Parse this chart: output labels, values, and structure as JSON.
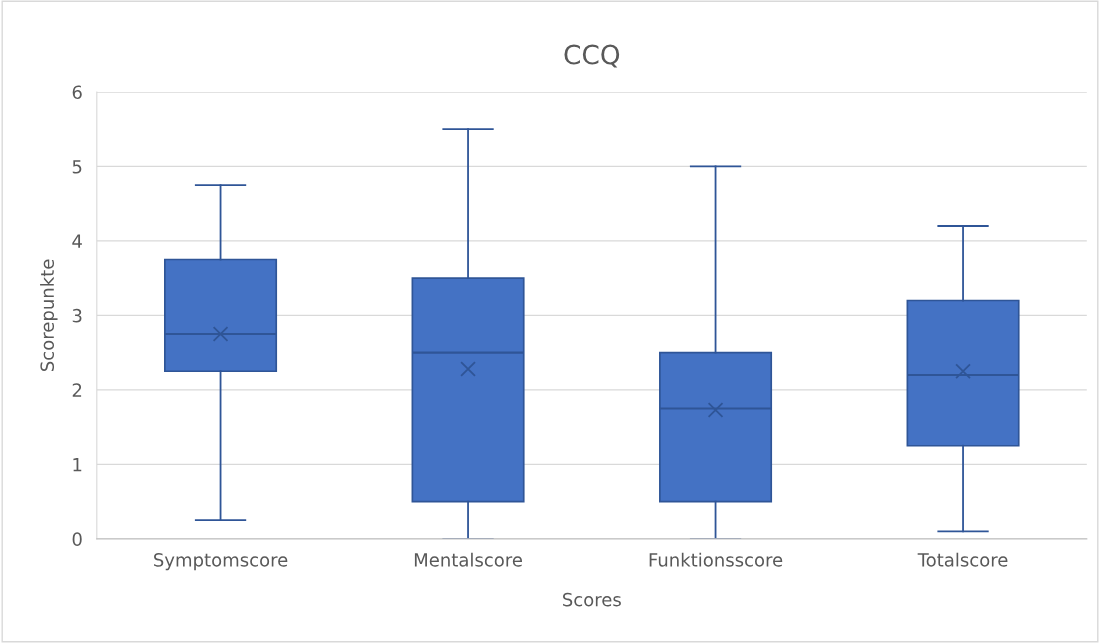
{
  "chart_data": {
    "type": "box",
    "title": "CCQ",
    "xlabel": "Scores",
    "ylabel": "Scorepunkte",
    "categories": [
      "Symptomscore",
      "Mentalscore",
      "Funktionsscore",
      "Totalscore"
    ],
    "boxes": [
      {
        "low": 0.25,
        "q1": 2.25,
        "median": 2.75,
        "q3": 3.75,
        "high": 4.75,
        "mean": 2.75
      },
      {
        "low": 0,
        "q1": 0.5,
        "median": 2.5,
        "q3": 3.5,
        "high": 5.5,
        "mean": 2.28
      },
      {
        "low": 0,
        "q1": 0.5,
        "median": 1.75,
        "q3": 2.5,
        "high": 5.0,
        "mean": 1.73
      },
      {
        "low": 0.1,
        "q1": 1.25,
        "median": 2.2,
        "q3": 3.2,
        "high": 4.2,
        "mean": 2.25
      }
    ],
    "color": "#4472c4",
    "marker": "cross",
    "ylim": [
      0,
      6
    ],
    "yticks": [
      0,
      1,
      2,
      3,
      4,
      5,
      6
    ],
    "grid": "y"
  }
}
